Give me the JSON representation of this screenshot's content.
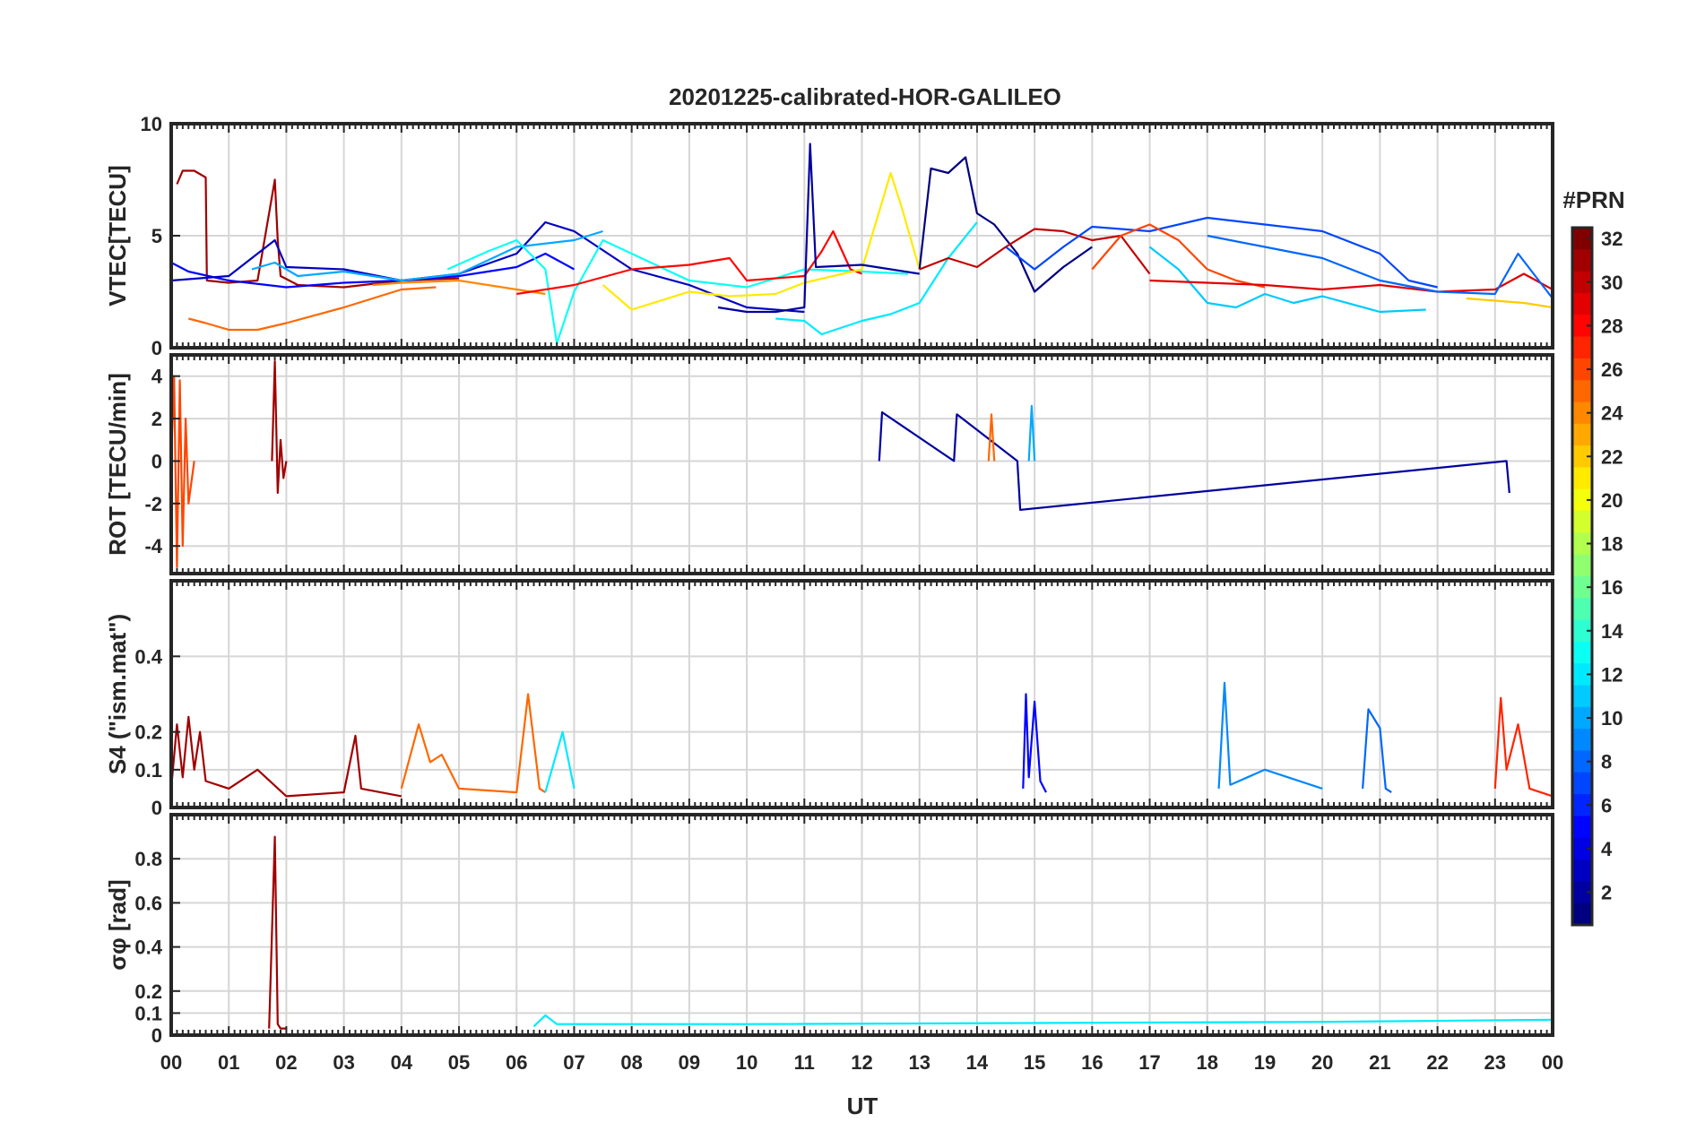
{
  "chart_data": {
    "title": "20201225-calibrated-HOR-GALILEO",
    "xlabel": "UT",
    "x_tick_labels": [
      "00",
      "01",
      "02",
      "03",
      "04",
      "05",
      "06",
      "07",
      "08",
      "09",
      "10",
      "11",
      "12",
      "13",
      "14",
      "15",
      "16",
      "17",
      "18",
      "19",
      "20",
      "21",
      "22",
      "23",
      "00"
    ],
    "xlim": [
      0,
      24
    ],
    "grid": true,
    "colorbar": {
      "title": "#PRN",
      "range": [
        1,
        32
      ],
      "tick_labels": [
        "2",
        "4",
        "6",
        "8",
        "10",
        "12",
        "14",
        "16",
        "18",
        "20",
        "22",
        "24",
        "26",
        "28",
        "30",
        "32"
      ],
      "colormap": "jet"
    },
    "panels": [
      {
        "type": "line",
        "ylabel": "VTEC[TECU]",
        "ylim": [
          0,
          10
        ],
        "y_tick_labels": [
          "0",
          "5",
          "10"
        ],
        "series": [
          {
            "prn": 31,
            "x": [
              0.1,
              0.2,
              0.4,
              0.6,
              0.62,
              1.0,
              1.5,
              1.8,
              1.85,
              1.9,
              2.2,
              3.0,
              4.0,
              5.0
            ],
            "y": [
              7.3,
              7.9,
              7.9,
              7.6,
              3.0,
              2.9,
              3.0,
              7.5,
              4.8,
              3.2,
              2.8,
              2.7,
              3.0,
              3.1
            ]
          },
          {
            "prn": 5,
            "x": [
              0.0,
              0.3,
              1.0,
              2.0,
              3.0,
              4.0,
              5.0,
              6.0,
              6.5,
              7.0
            ],
            "y": [
              3.8,
              3.4,
              3.0,
              2.7,
              2.9,
              3.0,
              3.2,
              3.6,
              4.2,
              3.5
            ]
          },
          {
            "prn": 25,
            "x": [
              0.3,
              0.6,
              1.0,
              1.5,
              2.0,
              3.0,
              4.0,
              4.6
            ],
            "y": [
              1.3,
              1.1,
              0.8,
              0.8,
              1.1,
              1.8,
              2.6,
              2.7
            ]
          },
          {
            "prn": 3,
            "x": [
              0.0,
              1.0,
              1.8,
              2.0,
              3.0,
              4.0,
              5.0,
              6.0,
              6.5,
              7.0,
              8.0,
              9.0,
              10.0,
              11.0
            ],
            "y": [
              3.0,
              3.2,
              4.8,
              3.6,
              3.5,
              3.0,
              3.3,
              4.2,
              5.6,
              5.2,
              3.5,
              2.8,
              1.8,
              1.6
            ]
          },
          {
            "prn": 10,
            "x": [
              1.4,
              1.8,
              2.2,
              3.0,
              4.0,
              5.0,
              6.0,
              7.0,
              7.5
            ],
            "y": [
              3.5,
              3.8,
              3.2,
              3.4,
              3.0,
              3.3,
              4.5,
              4.8,
              5.2
            ]
          },
          {
            "prn": 13,
            "x": [
              4.8,
              5.5,
              6.0,
              6.5,
              6.7,
              7.0,
              7.5,
              8.0,
              9.0,
              10.0,
              11.0,
              12.0,
              12.8
            ],
            "y": [
              3.5,
              4.3,
              4.8,
              3.5,
              0.2,
              2.5,
              4.8,
              4.2,
              3.0,
              2.7,
              3.5,
              3.4,
              3.3
            ]
          },
          {
            "prn": 24,
            "x": [
              3.5,
              4.0,
              5.0,
              6.0,
              6.5
            ],
            "y": [
              2.8,
              2.9,
              3.0,
              2.6,
              2.4
            ]
          },
          {
            "prn": 28,
            "x": [
              6.0,
              7.0,
              8.0,
              9.0,
              9.7,
              10.0,
              11.0,
              11.3,
              11.5,
              11.8,
              12.0
            ],
            "y": [
              2.4,
              2.8,
              3.5,
              3.7,
              4.0,
              3.0,
              3.2,
              4.3,
              5.2,
              3.5,
              3.3
            ]
          },
          {
            "prn": 21,
            "x": [
              7.5,
              8.0,
              9.0,
              9.7,
              10.5,
              11.0,
              12.0,
              12.5,
              12.7,
              13.0
            ],
            "y": [
              2.8,
              1.7,
              2.5,
              2.3,
              2.4,
              2.9,
              3.5,
              7.8,
              6.2,
              3.5
            ]
          },
          {
            "prn": 2,
            "x": [
              9.5,
              10.0,
              10.5,
              11.0,
              11.1,
              11.2,
              12.0,
              13.0
            ],
            "y": [
              1.8,
              1.6,
              1.6,
              1.8,
              9.1,
              3.6,
              3.7,
              3.3
            ]
          },
          {
            "prn": 12,
            "x": [
              10.5,
              11.0,
              11.3,
              12.0,
              12.5,
              13.0,
              13.5,
              14.0
            ],
            "y": [
              1.3,
              1.2,
              0.6,
              1.2,
              1.5,
              2.0,
              4.0,
              5.6
            ]
          },
          {
            "prn": 1,
            "x": [
              13.0,
              13.2,
              13.5,
              13.8,
              14.0,
              14.3,
              14.7,
              15.0,
              15.5,
              16.0
            ],
            "y": [
              3.5,
              8.0,
              7.8,
              8.5,
              6.0,
              5.5,
              4.2,
              2.5,
              3.6,
              4.5
            ]
          },
          {
            "prn": 30,
            "x": [
              13.0,
              13.5,
              14.0,
              14.5,
              15.0,
              15.5,
              16.0,
              16.5,
              17.0
            ],
            "y": [
              3.5,
              4.0,
              3.6,
              4.5,
              5.3,
              5.2,
              4.8,
              5.0,
              3.3
            ]
          },
          {
            "prn": 7,
            "x": [
              14.5,
              15.0,
              15.5,
              16.0,
              17.0,
              18.0,
              19.0,
              20.0,
              21.0,
              21.5,
              22.0
            ],
            "y": [
              4.5,
              3.5,
              4.5,
              5.4,
              5.2,
              5.8,
              5.5,
              5.2,
              4.2,
              3.0,
              2.7
            ]
          },
          {
            "prn": 26,
            "x": [
              16.0,
              16.5,
              17.0,
              17.5,
              18.0,
              18.5,
              19.0
            ],
            "y": [
              3.5,
              5.0,
              5.5,
              4.8,
              3.5,
              3.0,
              2.7
            ]
          },
          {
            "prn": 11,
            "x": [
              17.0,
              17.5,
              18.0,
              18.5,
              19.0,
              19.5,
              20.0,
              21.0,
              21.8
            ],
            "y": [
              4.5,
              3.5,
              2.0,
              1.8,
              2.4,
              2.0,
              2.3,
              1.6,
              1.7
            ]
          },
          {
            "prn": 29,
            "x": [
              17.0,
              18.0,
              19.0,
              20.0,
              21.0,
              22.0,
              23.0,
              23.5,
              24.0
            ],
            "y": [
              3.0,
              2.9,
              2.8,
              2.6,
              2.8,
              2.5,
              2.6,
              3.3,
              2.6
            ]
          },
          {
            "prn": 8,
            "x": [
              18.0,
              19.0,
              20.0,
              21.0,
              22.0,
              23.0,
              23.4,
              24.0
            ],
            "y": [
              5.0,
              4.5,
              4.0,
              3.0,
              2.5,
              2.4,
              4.2,
              2.2
            ]
          },
          {
            "prn": 22,
            "x": [
              22.5,
              23.0,
              23.5,
              24.0
            ],
            "y": [
              2.2,
              2.1,
              2.0,
              1.8
            ]
          }
        ]
      },
      {
        "type": "line",
        "ylabel": "ROT [TECU/min]",
        "ylim": [
          -5.3,
          5
        ],
        "y_tick_labels": [
          "4",
          "2",
          "0",
          "-2",
          "-4"
        ],
        "series": [
          {
            "prn": 26,
            "x": [
              0.0,
              0.05,
              0.1,
              0.15,
              0.2,
              0.25,
              0.3,
              0.4
            ],
            "y": [
              0,
              4.0,
              -5.0,
              3.8,
              -4.0,
              2.0,
              -2.0,
              0
            ]
          },
          {
            "prn": 31,
            "x": [
              1.75,
              1.8,
              1.85,
              1.9,
              1.95,
              2.0
            ],
            "y": [
              0,
              4.7,
              -1.5,
              1.0,
              -0.8,
              0
            ]
          },
          {
            "prn": 2,
            "x": [
              12.3,
              12.35,
              13.6,
              13.65,
              14.7,
              14.75,
              23.2,
              23.25
            ],
            "y": [
              0,
              2.3,
              0,
              2.2,
              0,
              -2.3,
              0,
              -1.5
            ]
          },
          {
            "prn": 10,
            "x": [
              14.9,
              14.95,
              15.0
            ],
            "y": [
              0,
              2.6,
              0
            ]
          },
          {
            "prn": 25,
            "x": [
              14.2,
              14.25,
              14.3
            ],
            "y": [
              0,
              2.2,
              0
            ]
          }
        ]
      },
      {
        "type": "line",
        "ylabel": "S4 (\"ism.mat\")",
        "ylim": [
          0,
          0.6
        ],
        "y_tick_labels": [
          "0",
          "0.1",
          "0.2",
          "0.4"
        ],
        "series": [
          {
            "prn": 31,
            "x": [
              0.0,
              0.1,
              0.2,
              0.3,
              0.4,
              0.5,
              0.6,
              1.0,
              1.5,
              2.0,
              3.0,
              3.2,
              3.3,
              4.0
            ],
            "y": [
              0.05,
              0.22,
              0.08,
              0.24,
              0.1,
              0.2,
              0.07,
              0.05,
              0.1,
              0.03,
              0.04,
              0.19,
              0.05,
              0.03
            ]
          },
          {
            "prn": 25,
            "x": [
              4.0,
              4.3,
              4.5,
              4.7,
              5.0,
              6.0,
              6.2,
              6.4,
              6.5
            ],
            "y": [
              0.05,
              0.22,
              0.12,
              0.14,
              0.05,
              0.04,
              0.3,
              0.05,
              0.04
            ]
          },
          {
            "prn": 12,
            "x": [
              6.5,
              6.8,
              7.0
            ],
            "y": [
              0.04,
              0.2,
              0.05
            ]
          },
          {
            "prn": 5,
            "x": [
              14.8,
              14.85,
              14.9,
              15.0,
              15.1,
              15.2
            ],
            "y": [
              0.05,
              0.3,
              0.08,
              0.28,
              0.07,
              0.04
            ]
          },
          {
            "prn": 9,
            "x": [
              18.2,
              18.3,
              18.4,
              19.0,
              20.0
            ],
            "y": [
              0.05,
              0.33,
              0.06,
              0.1,
              0.05
            ]
          },
          {
            "prn": 8,
            "x": [
              20.7,
              20.8,
              21.0,
              21.1,
              21.2
            ],
            "y": [
              0.05,
              0.26,
              0.21,
              0.05,
              0.04
            ]
          },
          {
            "prn": 27,
            "x": [
              23.0,
              23.1,
              23.2,
              23.4,
              23.6,
              24.0
            ],
            "y": [
              0.05,
              0.29,
              0.1,
              0.22,
              0.05,
              0.03
            ]
          }
        ]
      },
      {
        "type": "line",
        "ylabel": "σφ [rad]",
        "ylim": [
          0,
          1.0
        ],
        "y_tick_labels": [
          "0",
          "0.1",
          "0.2",
          "0.4",
          "0.6",
          "0.8"
        ],
        "series": [
          {
            "prn": 31,
            "x": [
              1.7,
              1.8,
              1.85,
              1.9,
              2.0
            ],
            "y": [
              0.03,
              0.9,
              0.05,
              0.03,
              0.03
            ]
          },
          {
            "prn": 12,
            "x": [
              6.3,
              6.5,
              6.7,
              10.0,
              20.0,
              24.0
            ],
            "y": [
              0.04,
              0.09,
              0.05,
              0.05,
              0.06,
              0.07
            ]
          }
        ]
      }
    ]
  }
}
